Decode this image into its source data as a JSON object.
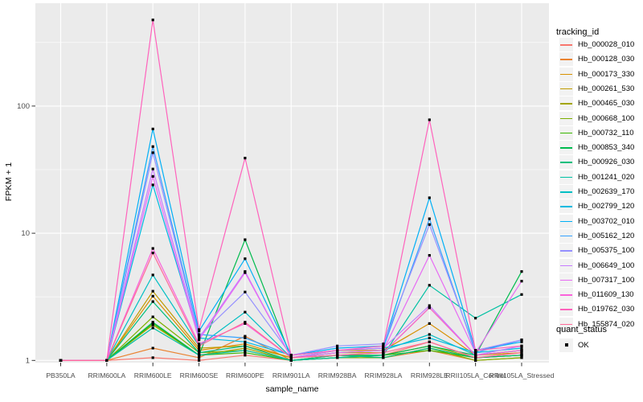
{
  "figure": {
    "y_axis_title": "FPKM + 1",
    "x_axis_title": "sample_name",
    "colors": {
      "panel_bg": "#EBEBEB",
      "grid": "#FFFFFF",
      "tick": "#333333",
      "tick_label": "#4D4D4D",
      "marker": "#000000",
      "legend_key_bg": "#F2F2F2"
    }
  },
  "chart_data": {
    "type": "line",
    "title": "",
    "xlabel": "sample_name",
    "ylabel": "FPKM + 1",
    "y_scale": "log10",
    "y_ticks": [
      1,
      10,
      100
    ],
    "grid": true,
    "legend_position": "right",
    "legend_title": "tracking_id",
    "point_legend": {
      "title": "quant_status",
      "items": [
        "OK"
      ]
    },
    "x": [
      "PB350LA",
      "RRIM600LA",
      "RRIM600LE",
      "RRIM600SE",
      "RRIM600PE",
      "RRIM901LA",
      "RRIM928BA",
      "RRIM928LA",
      "RRIM928LE",
      "RRII105LA_Control",
      "RRII105LA_Stressed"
    ],
    "series": [
      {
        "name": "Hb_000028_010",
        "color": "#F8766D",
        "values": [
          1,
          1,
          1.05,
          1.0,
          1.1,
          1.0,
          1.05,
          1.1,
          1.4,
          1.05,
          1.1
        ]
      },
      {
        "name": "Hb_000128_030",
        "color": "#EA8331",
        "values": [
          1,
          1,
          1.25,
          1.05,
          1.55,
          1.0,
          1.1,
          1.05,
          1.2,
          1.0,
          1.05
        ]
      },
      {
        "name": "Hb_000173_330",
        "color": "#D89000",
        "values": [
          1,
          1,
          3.2,
          1.2,
          1.35,
          1.05,
          1.2,
          1.2,
          1.95,
          1.1,
          1.15
        ]
      },
      {
        "name": "Hb_000261_530",
        "color": "#C09B00",
        "values": [
          1,
          1,
          3.5,
          1.25,
          1.3,
          1.05,
          1.15,
          1.15,
          2.6,
          1.1,
          1.2
        ]
      },
      {
        "name": "Hb_000465_030",
        "color": "#A3A500",
        "values": [
          1,
          1,
          1.9,
          1.1,
          1.25,
          1.0,
          1.1,
          1.1,
          1.3,
          1.05,
          1.1
        ]
      },
      {
        "name": "Hb_000668_100",
        "color": "#7CAE00",
        "values": [
          1,
          1,
          2.2,
          1.15,
          1.2,
          1.0,
          1.05,
          1.05,
          1.25,
          1.0,
          1.05
        ]
      },
      {
        "name": "Hb_000732_110",
        "color": "#39B600",
        "values": [
          1,
          1,
          1.95,
          1.1,
          1.15,
          1.0,
          1.05,
          1.1,
          1.2,
          1.05,
          1.1
        ]
      },
      {
        "name": "Hb_000853_340",
        "color": "#00BB4E",
        "values": [
          1,
          1,
          2.0,
          1.1,
          8.9,
          1.05,
          1.1,
          1.1,
          1.3,
          1.1,
          5.0
        ]
      },
      {
        "name": "Hb_000926_030",
        "color": "#00BF7D",
        "values": [
          1,
          1,
          2.9,
          1.15,
          1.3,
          1.0,
          1.1,
          1.05,
          1.25,
          1.05,
          1.1
        ]
      },
      {
        "name": "Hb_001241_020",
        "color": "#00C1A3",
        "values": [
          1,
          1,
          1.8,
          1.1,
          1.2,
          1.0,
          1.05,
          1.1,
          3.9,
          2.15,
          3.3
        ]
      },
      {
        "name": "Hb_002639_170",
        "color": "#00BFC4",
        "values": [
          1,
          1,
          4.7,
          1.3,
          2.4,
          1.05,
          1.15,
          1.2,
          1.6,
          1.1,
          1.2
        ]
      },
      {
        "name": "Hb_002799_120",
        "color": "#00BAE0",
        "values": [
          1,
          1,
          24,
          1.5,
          1.4,
          1.1,
          1.2,
          1.25,
          1.5,
          1.15,
          1.25
        ]
      },
      {
        "name": "Hb_003702_010",
        "color": "#00B0F6",
        "values": [
          1,
          1,
          66,
          1.7,
          6.3,
          1.1,
          1.25,
          1.3,
          19,
          1.2,
          1.4
        ]
      },
      {
        "name": "Hb_005162_120",
        "color": "#35A2FF",
        "values": [
          1,
          1,
          48,
          1.6,
          1.5,
          1.1,
          1.2,
          1.25,
          13,
          1.15,
          1.45
        ]
      },
      {
        "name": "Hb_005375_100",
        "color": "#9590FF",
        "values": [
          1,
          1,
          43,
          1.55,
          3.45,
          1.1,
          1.3,
          1.35,
          11.7,
          1.2,
          1.45
        ]
      },
      {
        "name": "Hb_006649_100",
        "color": "#C77CFF",
        "values": [
          1,
          1,
          32,
          1.5,
          5.0,
          1.05,
          1.2,
          1.25,
          2.7,
          1.1,
          1.3
        ]
      },
      {
        "name": "Hb_007317_100",
        "color": "#E76BF3",
        "values": [
          1,
          1,
          28,
          1.45,
          4.9,
          1.05,
          1.15,
          1.2,
          6.7,
          1.15,
          4.2
        ]
      },
      {
        "name": "Hb_011609_130",
        "color": "#FA62DB",
        "values": [
          1,
          1,
          7.6,
          1.35,
          1.95,
          1.05,
          1.1,
          1.15,
          2.6,
          1.1,
          1.2
        ]
      },
      {
        "name": "Hb_019762_030",
        "color": "#FF62BC",
        "values": [
          1,
          1,
          475,
          1.75,
          39,
          1.1,
          1.2,
          1.3,
          78,
          1.2,
          1.3
        ]
      },
      {
        "name": "Hb_155874_020",
        "color": "#FF6A98",
        "values": [
          1,
          1,
          7.0,
          1.3,
          2.0,
          1.05,
          1.1,
          1.15,
          1.4,
          1.05,
          1.15
        ]
      }
    ]
  }
}
